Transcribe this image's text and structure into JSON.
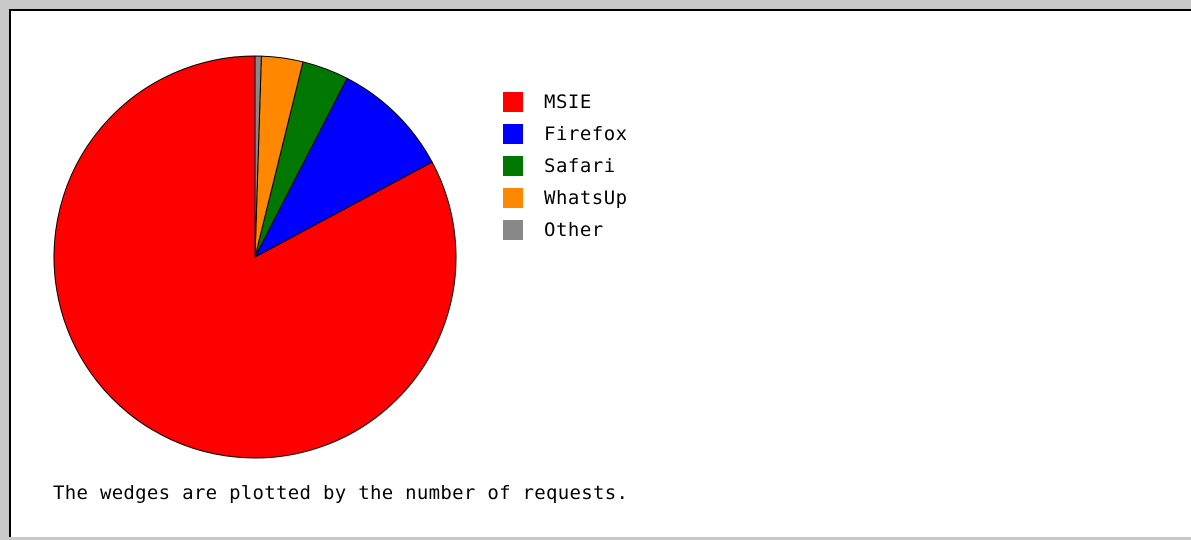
{
  "chart_data": {
    "type": "pie",
    "slices": [
      {
        "label": "MSIE",
        "value": 82.0,
        "color": "#ff0000"
      },
      {
        "label": "Firefox",
        "value": 9.5,
        "color": "#0000ff"
      },
      {
        "label": "Safari",
        "value": 3.7,
        "color": "#007700"
      },
      {
        "label": "WhatsUp",
        "value": 3.3,
        "color": "#ff8800"
      },
      {
        "label": "Other",
        "value": 0.5,
        "color": "#888888"
      }
    ],
    "title": "",
    "legend_position": "right"
  },
  "footnote": "The wedges are plotted by the number of requests."
}
